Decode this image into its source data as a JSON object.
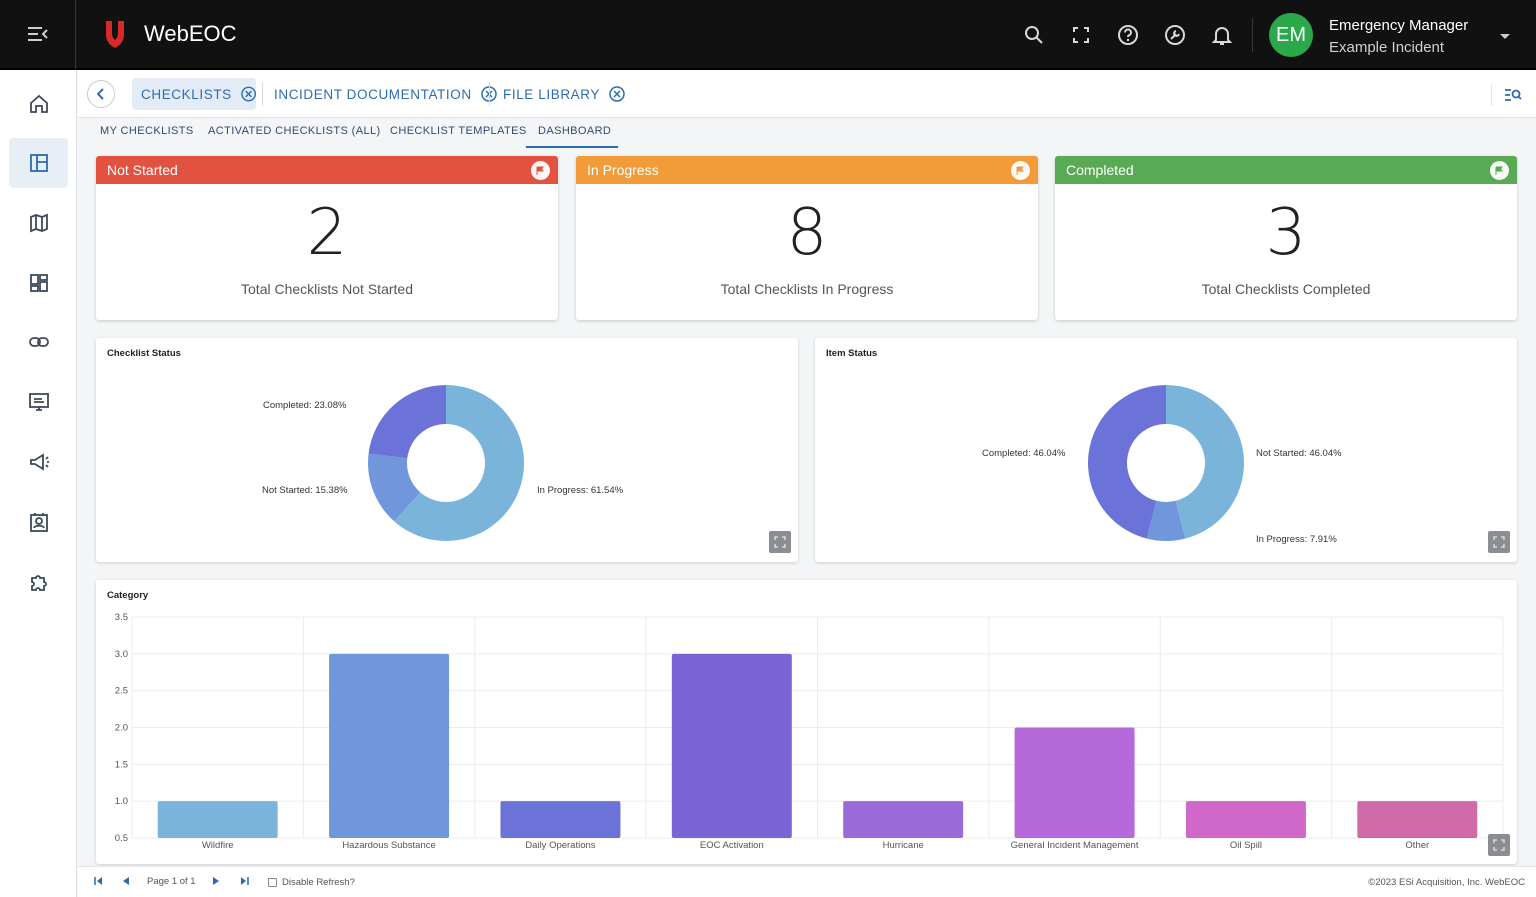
{
  "app": {
    "name": "WebEOC"
  },
  "user": {
    "initials": "EM",
    "role": "Emergency Manager",
    "incident": "Example Incident"
  },
  "tabs": [
    {
      "label": "CHECKLISTS"
    },
    {
      "label": "INCIDENT DOCUMENTATION"
    },
    {
      "label": "FILE LIBRARY"
    }
  ],
  "subnav": [
    "MY CHECKLISTS",
    "ACTIVATED CHECKLISTS (ALL)",
    "CHECKLIST TEMPLATES",
    "DASHBOARD"
  ],
  "stats": [
    {
      "title": "Not Started",
      "value": "2",
      "label": "Total Checklists Not Started",
      "color": "#e15241"
    },
    {
      "title": "In Progress",
      "value": "8",
      "label": "Total Checklists In Progress",
      "color": "#f19c38"
    },
    {
      "title": "Completed",
      "value": "3",
      "label": "Total Checklists Completed",
      "color": "#5aa955"
    }
  ],
  "chart_data": [
    {
      "type": "pie",
      "title": "Checklist Status",
      "slices": [
        {
          "label": "In Progress: 61.54%",
          "name": "In Progress",
          "value": 61.54,
          "color": "#7ab4db"
        },
        {
          "label": "Not Started: 15.38%",
          "name": "Not Started",
          "value": 15.38,
          "color": "#7096dc"
        },
        {
          "label": "Completed: 23.08%",
          "name": "Completed",
          "value": 23.08,
          "color": "#6b73d9"
        }
      ]
    },
    {
      "type": "pie",
      "title": "Item Status",
      "slices": [
        {
          "label": "Not Started: 46.04%",
          "name": "Not Started",
          "value": 46.04,
          "color": "#7ab4db"
        },
        {
          "label": "In Progress: 7.91%",
          "name": "In Progress",
          "value": 7.91,
          "color": "#7096dc"
        },
        {
          "label": "Completed: 46.04%",
          "name": "Completed",
          "value": 46.04,
          "color": "#6b73d9"
        }
      ]
    },
    {
      "type": "bar",
      "title": "Category",
      "categories": [
        "Wildfire",
        "Hazardous Substance",
        "Daily Operations",
        "EOC Activation",
        "Hurricane",
        "General Incident Management",
        "Oil Spill",
        "Other"
      ],
      "values": [
        1,
        3,
        1,
        3,
        1,
        2,
        1,
        1
      ],
      "colors": [
        "#7ab4db",
        "#7096dc",
        "#6b73d9",
        "#7b64d4",
        "#9a6bd9",
        "#b66ad9",
        "#cf68c9",
        "#d06aa8"
      ],
      "ylim": [
        0.5,
        3.5
      ],
      "yticks": [
        "0.5",
        "1.0",
        "1.5",
        "2.0",
        "2.5",
        "3.0",
        "3.5"
      ],
      "grid": true
    }
  ],
  "footer": {
    "page": "Page 1 of 1",
    "disable_refresh": "Disable Refresh?",
    "copyright": "©2023 ESi Acquisition, Inc. WebEOC"
  }
}
